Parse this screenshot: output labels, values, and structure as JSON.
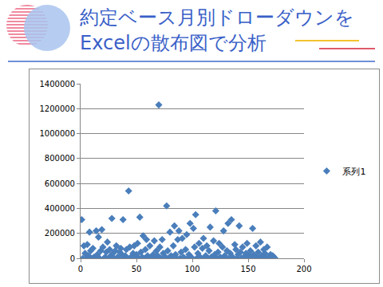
{
  "chart_data": {
    "type": "scatter",
    "title": "約定ベース月別ドローダウンを\nExcelの散布図で分析",
    "series": [
      {
        "name": "系列1",
        "color": "#4a7ebb",
        "marker": "diamond",
        "x": [
          1,
          2,
          3,
          4,
          5,
          6,
          7,
          8,
          9,
          10,
          11,
          12,
          13,
          14,
          15,
          16,
          17,
          18,
          19,
          20,
          21,
          22,
          23,
          24,
          25,
          26,
          27,
          28,
          29,
          30,
          31,
          32,
          33,
          34,
          35,
          36,
          37,
          38,
          39,
          40,
          41,
          42,
          43,
          44,
          45,
          46,
          47,
          48,
          49,
          50,
          51,
          52,
          53,
          54,
          55,
          56,
          57,
          58,
          59,
          60,
          61,
          62,
          63,
          64,
          65,
          66,
          67,
          68,
          69,
          70,
          71,
          72,
          73,
          74,
          75,
          76,
          77,
          78,
          79,
          80,
          81,
          82,
          83,
          84,
          85,
          86,
          87,
          88,
          89,
          90,
          91,
          92,
          93,
          94,
          95,
          96,
          97,
          98,
          99,
          100,
          101,
          102,
          103,
          104,
          105,
          106,
          107,
          108,
          109,
          110,
          111,
          112,
          113,
          114,
          115,
          116,
          117,
          118,
          119,
          120,
          121,
          122,
          123,
          124,
          125,
          126,
          127,
          128,
          129,
          130,
          131,
          132,
          133,
          134,
          135,
          136,
          137,
          138,
          139,
          140,
          141,
          142,
          143,
          144,
          145,
          146,
          147,
          148,
          149,
          150,
          151,
          152,
          153,
          154,
          155,
          156,
          157,
          158,
          159,
          160,
          161,
          162,
          163,
          164,
          165,
          166,
          167,
          168,
          169,
          170,
          171,
          172,
          173,
          174
        ],
        "values": [
          310000,
          0,
          100000,
          40000,
          0,
          110000,
          20000,
          210000,
          60000,
          0,
          80000,
          10000,
          0,
          220000,
          30000,
          170000,
          0,
          60000,
          230000,
          90000,
          0,
          10000,
          50000,
          130000,
          0,
          70000,
          20000,
          320000,
          40000,
          0,
          60000,
          100000,
          10000,
          0,
          50000,
          80000,
          30000,
          310000,
          0,
          20000,
          70000,
          0,
          540000,
          90000,
          10000,
          0,
          40000,
          100000,
          0,
          30000,
          120000,
          0,
          330000,
          50000,
          10000,
          180000,
          0,
          70000,
          150000,
          20000,
          0,
          100000,
          10000,
          0,
          30000,
          140000,
          0,
          60000,
          20000,
          1230000,
          90000,
          0,
          150000,
          40000,
          0,
          10000,
          420000,
          60000,
          0,
          210000,
          20000,
          0,
          100000,
          260000,
          30000,
          0,
          150000,
          220000,
          0,
          50000,
          160000,
          10000,
          0,
          70000,
          190000,
          0,
          30000,
          280000,
          10000,
          0,
          240000,
          90000,
          350000,
          0,
          40000,
          120000,
          10000,
          0,
          80000,
          160000,
          0,
          20000,
          100000,
          0,
          60000,
          250000,
          10000,
          0,
          140000,
          30000,
          380000,
          0,
          50000,
          120000,
          10000,
          0,
          90000,
          220000,
          20000,
          0,
          60000,
          280000,
          0,
          40000,
          310000,
          10000,
          0,
          110000,
          70000,
          0,
          30000,
          260000,
          50000,
          0,
          90000,
          10000,
          0,
          40000,
          120000,
          0,
          20000,
          60000,
          0,
          240000,
          30000,
          0,
          100000,
          10000,
          50000,
          0,
          130000,
          20000,
          0,
          70000,
          40000,
          0,
          90000,
          10000,
          0,
          30000,
          0,
          20000,
          10000,
          0
        ]
      }
    ],
    "xlim": [
      0,
      200
    ],
    "xticks": [
      0,
      50,
      100,
      150,
      200
    ],
    "ylim": [
      0,
      1400000
    ],
    "yticks": [
      0,
      200000,
      400000,
      600000,
      800000,
      1000000,
      1200000,
      1400000
    ],
    "grid": true,
    "legend": "right"
  }
}
